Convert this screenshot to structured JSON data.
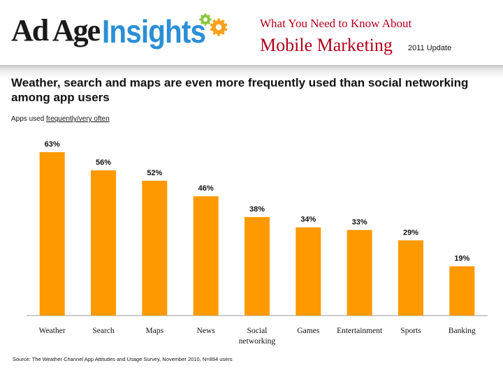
{
  "header": {
    "brand_ad_age": "Ad Age",
    "brand_insights": "Insights",
    "report_line1": "What You Need to Know About",
    "report_line2": "Mobile Marketing",
    "report_update": "2011 Update",
    "colors": {
      "brand_blue": "#2a8fd6",
      "report_red": "#b0001a",
      "gear_green": "#8cc63f",
      "gear_orange": "#f7a21b"
    }
  },
  "slide": {
    "title": "Weather, search and maps are even more frequently used than social networking among app users",
    "subtitle_prefix": "Apps used ",
    "subtitle_underlined": "frequently/very often",
    "source": "Source: The Weather Channel App Attitudes and Usage Survey, November 2010, N=894 users"
  },
  "chart_data": {
    "type": "bar",
    "categories": [
      "Weather",
      "Search",
      "Maps",
      "News",
      "Social networking",
      "Games",
      "Entertainment",
      "Sports",
      "Banking"
    ],
    "category_lines": [
      [
        "Weather"
      ],
      [
        "Search"
      ],
      [
        "Maps"
      ],
      [
        "News"
      ],
      [
        "Social",
        "networking"
      ],
      [
        "Games"
      ],
      [
        "Entertainment"
      ],
      [
        "Sports"
      ],
      [
        "Banking"
      ]
    ],
    "values": [
      63,
      56,
      52,
      46,
      38,
      34,
      33,
      29,
      19
    ],
    "value_labels": [
      "63%",
      "56%",
      "52%",
      "46%",
      "38%",
      "34%",
      "33%",
      "29%",
      "19%"
    ],
    "unit": "%",
    "ylim": [
      0,
      63
    ],
    "bar_color": "#ff9900",
    "grid": false,
    "legend": "none"
  }
}
